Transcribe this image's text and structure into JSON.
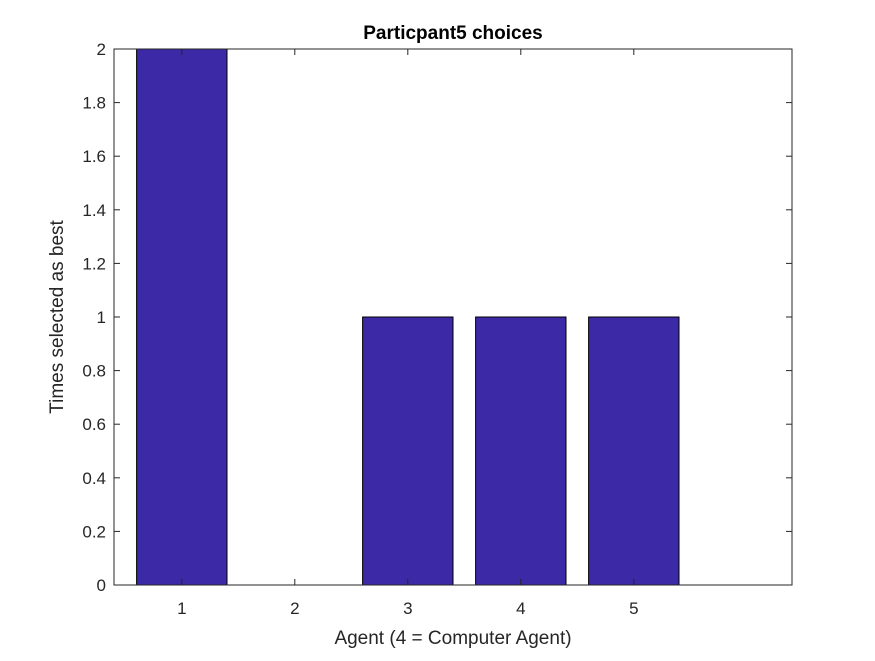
{
  "chart_data": {
    "type": "bar",
    "title": "Particpant5 choices",
    "xlabel": "Agent (4 = Computer Agent)",
    "ylabel": "Times selected as best",
    "categories": [
      "1",
      "2",
      "3",
      "4",
      "5"
    ],
    "values": [
      2,
      0,
      1,
      1,
      1
    ],
    "xlim": [
      0.4,
      6.4
    ],
    "ylim": [
      0,
      2
    ],
    "yticks": [
      "0",
      "0.2",
      "0.4",
      "0.6",
      "0.8",
      "1",
      "1.2",
      "1.4",
      "1.6",
      "1.8",
      "2"
    ],
    "grid": false,
    "legend": "none",
    "bar_color": "#3C29A6",
    "bar_edge_color": "#000000"
  }
}
